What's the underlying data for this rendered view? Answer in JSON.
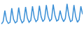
{
  "chart_data": {
    "type": "line",
    "x": [
      1,
      2,
      3,
      4,
      5,
      6,
      7,
      8,
      9,
      10,
      11,
      12,
      13,
      14,
      15,
      16,
      17,
      18,
      19,
      20,
      21,
      22,
      23,
      24,
      25,
      26,
      27,
      28,
      29,
      30,
      31,
      32,
      33,
      34,
      35,
      36,
      37,
      38,
      39,
      40,
      41,
      42,
      43,
      44,
      45,
      46,
      47,
      48
    ],
    "values": [
      8,
      12,
      30,
      14,
      9,
      11,
      34,
      16,
      10,
      12,
      35,
      17,
      10,
      13,
      36,
      18,
      11,
      14,
      37,
      19,
      12,
      15,
      38,
      20,
      12,
      16,
      39,
      21,
      13,
      16,
      40,
      22,
      13,
      15,
      30,
      18,
      12,
      17,
      41,
      22,
      12,
      14,
      39,
      20,
      11,
      15,
      37,
      24
    ],
    "color": "#3a8fd6",
    "xlim": [
      1,
      48
    ],
    "ylim": [
      0,
      44
    ],
    "xticks": [],
    "yticks": [],
    "grid": false,
    "tick_labels": false
  }
}
